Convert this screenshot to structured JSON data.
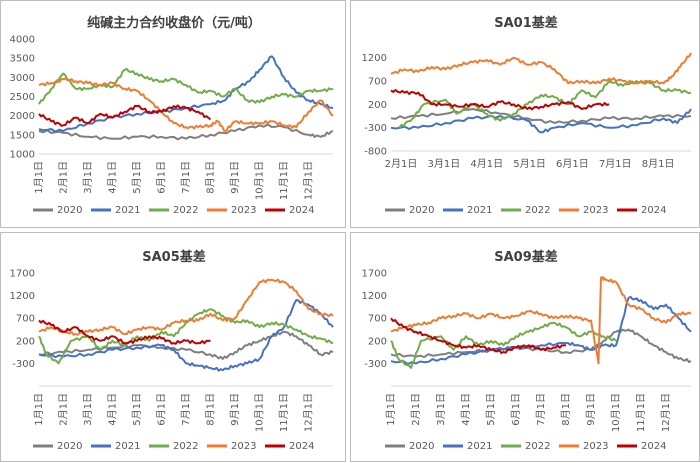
{
  "colors": {
    "2020": "#7f7f7f",
    "2021": "#4472c4",
    "2022": "#70ad47",
    "2023": "#ed7d31",
    "2024": "#c00000"
  },
  "chart_data": [
    {
      "type": "line",
      "title": "纯碱主力合约收盘价（元/吨）",
      "x_ticks": [
        "1月1日",
        "2月1日",
        "3月1日",
        "4月1日",
        "5月1日",
        "6月1日",
        "7月1日",
        "8月1日",
        "9月1日",
        "10月1日",
        "11月1日",
        "12月1日"
      ],
      "xmax": 12,
      "ylim": [
        1000,
        4000
      ],
      "y_ticks": [
        1000,
        1500,
        2000,
        2500,
        3000,
        3500,
        4000
      ],
      "series": [
        {
          "name": "2020",
          "x": [
            0,
            1,
            2,
            3,
            4,
            5,
            6,
            7,
            8,
            9,
            10,
            11,
            11.5,
            12
          ],
          "y": [
            1600,
            1550,
            1450,
            1400,
            1450,
            1450,
            1400,
            1500,
            1600,
            1750,
            1700,
            1500,
            1450,
            1600
          ]
        },
        {
          "name": "2021",
          "x": [
            0,
            1,
            2,
            3,
            4,
            5,
            6,
            7,
            7.6,
            8,
            8.6,
            9,
            9.5,
            10,
            10.5,
            11,
            11.5,
            12
          ],
          "y": [
            1650,
            1600,
            1800,
            1950,
            2050,
            2100,
            2200,
            2300,
            2400,
            2700,
            2900,
            3200,
            3550,
            3000,
            2600,
            2400,
            2300,
            2200
          ]
        },
        {
          "name": "2022",
          "x": [
            0,
            0.5,
            1,
            1.5,
            2,
            2.5,
            3,
            3.5,
            4,
            4.5,
            5,
            5.5,
            6,
            6.5,
            7,
            7.5,
            8,
            8.5,
            9,
            9.5,
            10,
            10.5,
            11,
            11.5,
            12
          ],
          "y": [
            2300,
            2700,
            3100,
            2700,
            2700,
            2800,
            2750,
            3200,
            3100,
            2950,
            2900,
            2950,
            2800,
            2600,
            2650,
            2500,
            2700,
            2400,
            2350,
            2500,
            2550,
            2500,
            2650,
            2650,
            2700
          ]
        },
        {
          "name": "2023",
          "x": [
            0,
            0.5,
            1,
            1.5,
            2,
            2.5,
            3,
            3.5,
            4,
            4.5,
            5,
            5.5,
            6,
            6.5,
            7,
            7.3,
            7.6,
            8,
            8.5,
            9,
            9.5,
            10,
            10.5,
            11,
            11.5,
            12
          ],
          "y": [
            2800,
            2850,
            2950,
            2900,
            2850,
            2800,
            2850,
            2700,
            2650,
            2400,
            2100,
            1800,
            1700,
            1700,
            1750,
            1850,
            1600,
            1850,
            1800,
            1800,
            1850,
            1750,
            1700,
            2100,
            2400,
            2000
          ]
        },
        {
          "name": "2024",
          "x": [
            0,
            0.5,
            1,
            1.5,
            2,
            2.5,
            3,
            3.5,
            4,
            4.5,
            5,
            5.5,
            6,
            6.5,
            7
          ],
          "y": [
            2050,
            1850,
            1750,
            1950,
            1800,
            2050,
            1950,
            2100,
            2250,
            2100,
            2100,
            2250,
            2200,
            2100,
            1900
          ]
        }
      ],
      "legend": "bottom"
    },
    {
      "type": "line",
      "title": "SA01基差",
      "x_ticks": [
        "2月1日",
        "3月1日",
        "4月1日",
        "5月1日",
        "6月1日",
        "7月1日",
        "8月1日"
      ],
      "xmax": 11,
      "ylim": [
        -800,
        1600
      ],
      "y_ticks": [
        -800,
        -300,
        200,
        700,
        1200
      ],
      "series": [
        {
          "name": "2020",
          "x": [
            0,
            1,
            2,
            3,
            4,
            5,
            6,
            7,
            8,
            9,
            10,
            11
          ],
          "y": [
            -100,
            -50,
            0,
            100,
            0,
            -100,
            -200,
            -150,
            -100,
            -100,
            -50,
            -50
          ]
        },
        {
          "name": "2021",
          "x": [
            0,
            1,
            2,
            3,
            4,
            5,
            5.5,
            6,
            7,
            8,
            9,
            10,
            10.5,
            11
          ],
          "y": [
            -300,
            -300,
            -200,
            -100,
            -50,
            -150,
            -400,
            -300,
            -200,
            -300,
            -250,
            -100,
            -200,
            100
          ]
        },
        {
          "name": "2022",
          "x": [
            0.3,
            0.8,
            1.2,
            2,
            2.4,
            3,
            3.5,
            4,
            4.5,
            5,
            5.5,
            6,
            6.5,
            7,
            7.5,
            8,
            8.5,
            9,
            9.5,
            10,
            10.5,
            11
          ],
          "y": [
            -300,
            -100,
            200,
            300,
            0,
            200,
            0,
            -150,
            0,
            200,
            400,
            350,
            200,
            500,
            350,
            700,
            600,
            700,
            650,
            500,
            500,
            450
          ]
        },
        {
          "name": "2023",
          "x": [
            0,
            0.5,
            1,
            1.5,
            2,
            2.5,
            3,
            3.5,
            4,
            4.5,
            5,
            5.5,
            6,
            6.5,
            7,
            7.5,
            8,
            8.5,
            9,
            9.5,
            10,
            10.3,
            10.6,
            11
          ],
          "y": [
            850,
            950,
            900,
            1000,
            950,
            1050,
            1100,
            1150,
            1050,
            1200,
            1050,
            1100,
            950,
            650,
            700,
            650,
            750,
            700,
            650,
            700,
            650,
            800,
            1000,
            1300
          ]
        },
        {
          "name": "2024",
          "x": [
            0,
            0.5,
            1,
            1.5,
            2,
            2.5,
            3,
            3.5,
            4,
            4.5,
            5,
            5.5,
            6,
            6.5,
            7,
            7.5,
            8
          ],
          "y": [
            500,
            450,
            450,
            200,
            200,
            150,
            200,
            150,
            250,
            200,
            100,
            150,
            200,
            250,
            100,
            200,
            200
          ]
        }
      ],
      "legend": "bottom"
    },
    {
      "type": "line",
      "title": "SA05基差",
      "x_ticks": [
        "1月1日",
        "2月1日",
        "3月1日",
        "4月1日",
        "5月1日",
        "6月1日",
        "7月1日",
        "8月1日",
        "9月1日",
        "10月1日",
        "11月1日",
        "12月1日"
      ],
      "xmax": 12,
      "ylim": [
        -800,
        1700
      ],
      "y_ticks": [
        -300,
        200,
        700,
        1200,
        1700
      ],
      "series": [
        {
          "name": "2020",
          "x": [
            0,
            1,
            2,
            3,
            4,
            5,
            6,
            7,
            7.5,
            8,
            8.5,
            9,
            9.5,
            10,
            10.5,
            11,
            11.5,
            12
          ],
          "y": [
            -100,
            -50,
            0,
            50,
            100,
            50,
            0,
            -100,
            -200,
            -50,
            100,
            200,
            300,
            400,
            300,
            100,
            -100,
            -50
          ]
        },
        {
          "name": "2021",
          "x": [
            0,
            1,
            2,
            3,
            4,
            5,
            5.5,
            6,
            6.5,
            7,
            7.5,
            8,
            8.5,
            9,
            9.5,
            10,
            10.5,
            11,
            11.5,
            12
          ],
          "y": [
            -100,
            -150,
            -100,
            0,
            50,
            100,
            0,
            -300,
            -350,
            -400,
            -450,
            -350,
            -300,
            -200,
            300,
            500,
            1100,
            1000,
            800,
            500
          ]
        },
        {
          "name": "2022",
          "x": [
            0,
            0.3,
            0.8,
            1.3,
            2,
            2.5,
            3,
            3.5,
            4,
            4.5,
            5,
            5.5,
            6,
            6.5,
            7,
            7.5,
            8,
            8.5,
            9,
            9.5,
            10,
            10.5,
            11,
            11.5,
            12
          ],
          "y": [
            300,
            -100,
            -300,
            200,
            300,
            0,
            200,
            100,
            300,
            200,
            400,
            300,
            600,
            800,
            900,
            750,
            600,
            650,
            500,
            600,
            550,
            450,
            300,
            250,
            150
          ]
        },
        {
          "name": "2023",
          "x": [
            0,
            0.5,
            1,
            1.5,
            2,
            2.5,
            3,
            3.5,
            4,
            4.5,
            5,
            5.5,
            6,
            6.5,
            7,
            7.5,
            8,
            8.5,
            9,
            9.5,
            10,
            10.5,
            11,
            11.5,
            12
          ],
          "y": [
            400,
            500,
            400,
            350,
            400,
            450,
            500,
            350,
            450,
            500,
            450,
            600,
            650,
            650,
            800,
            650,
            700,
            1100,
            1500,
            1550,
            1500,
            1300,
            900,
            800,
            750
          ]
        },
        {
          "name": "2024",
          "x": [
            0,
            0.5,
            1,
            1.5,
            2,
            2.5,
            3,
            3.5,
            4,
            4.5,
            5,
            5.5,
            6,
            6.5,
            7
          ],
          "y": [
            650,
            550,
            400,
            500,
            300,
            200,
            300,
            150,
            200,
            300,
            250,
            150,
            200,
            150,
            200
          ]
        }
      ],
      "legend": "bottom"
    },
    {
      "type": "line",
      "title": "SA09基差",
      "x_ticks": [
        "1月1日",
        "2月1日",
        "3月1日",
        "4月1日",
        "5月1日",
        "6月1日",
        "7月1日",
        "8月1日",
        "9月1日",
        "10月1日",
        "11月1日",
        "12月1日"
      ],
      "xmax": 12,
      "ylim": [
        -800,
        1700
      ],
      "y_ticks": [
        -300,
        200,
        700,
        1200,
        1700
      ],
      "series": [
        {
          "name": "2020",
          "x": [
            0,
            1,
            2,
            3,
            4,
            5,
            6,
            7,
            8,
            8.5,
            9,
            9.5,
            10,
            10.5,
            11,
            11.5,
            12
          ],
          "y": [
            -100,
            -150,
            -100,
            -50,
            0,
            50,
            0,
            -50,
            0,
            200,
            400,
            450,
            300,
            100,
            -50,
            -200,
            -250
          ]
        },
        {
          "name": "2021",
          "x": [
            0,
            1,
            2,
            3,
            4,
            5,
            6,
            7,
            7.5,
            8,
            8.5,
            9,
            9.5,
            10,
            10.5,
            11,
            11.5,
            12
          ],
          "y": [
            -250,
            -300,
            -200,
            -100,
            0,
            50,
            100,
            150,
            100,
            0,
            100,
            100,
            1150,
            1100,
            900,
            1000,
            700,
            400
          ]
        },
        {
          "name": "2022",
          "x": [
            0,
            0.3,
            0.8,
            1.2,
            2,
            2.5,
            3,
            3.5,
            4,
            4.5,
            5,
            5.5,
            6,
            6.5,
            7,
            7.5,
            8,
            8.5,
            9
          ],
          "y": [
            200,
            -200,
            -400,
            200,
            300,
            0,
            300,
            100,
            200,
            100,
            300,
            400,
            500,
            600,
            500,
            300,
            400,
            300,
            200
          ]
        },
        {
          "name": "2023",
          "x": [
            0,
            0.5,
            1,
            1.5,
            2,
            2.5,
            3,
            3.5,
            4,
            4.5,
            5,
            5.5,
            6,
            6.5,
            7,
            7.5,
            8,
            8.3,
            8.4,
            8.6,
            9,
            9.5,
            10,
            10.5,
            11,
            11.5,
            12
          ],
          "y": [
            400,
            500,
            550,
            600,
            700,
            750,
            800,
            700,
            800,
            700,
            750,
            850,
            800,
            700,
            750,
            700,
            650,
            -300,
            1600,
            1550,
            1500,
            1000,
            900,
            700,
            600,
            800,
            800
          ]
        },
        {
          "name": "2024",
          "x": [
            0,
            0.5,
            1,
            1.5,
            2,
            2.5,
            3,
            3.5,
            4,
            4.5,
            5,
            5.5,
            6,
            6.5,
            7
          ],
          "y": [
            700,
            500,
            400,
            300,
            200,
            100,
            50,
            100,
            0,
            -50,
            50,
            100,
            0,
            50,
            100
          ]
        }
      ],
      "legend": "bottom"
    }
  ]
}
